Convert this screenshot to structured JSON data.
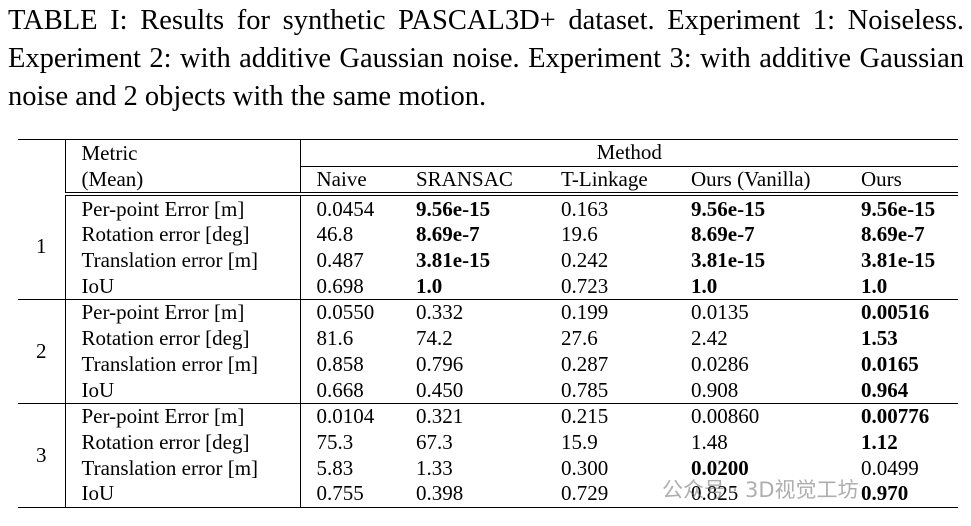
{
  "caption": "TABLE I: Results for synthetic PASCAL3D+ dataset. Experiment 1: Noiseless. Experiment 2: with additive Gaussian noise. Experiment 3: with additive Gaussian noise and 2 objects with the same motion.",
  "table": {
    "header": {
      "metric": [
        "Metric",
        "(Mean)"
      ],
      "method": "Method",
      "columns": [
        "Naive",
        "SRANSAC",
        "T-Linkage",
        "Ours (Vanilla)",
        "Ours"
      ]
    },
    "groups": [
      {
        "label": "1",
        "rows": [
          {
            "metric": "Per-point Error [m]",
            "values": [
              "0.0454",
              "9.56e-15",
              "0.163",
              "9.56e-15",
              "9.56e-15"
            ],
            "bold": [
              1,
              3,
              4
            ]
          },
          {
            "metric": "Rotation error [deg]",
            "values": [
              "46.8",
              "8.69e-7",
              "19.6",
              "8.69e-7",
              "8.69e-7"
            ],
            "bold": [
              1,
              3,
              4
            ]
          },
          {
            "metric": "Translation error [m]",
            "values": [
              "0.487",
              "3.81e-15",
              "0.242",
              "3.81e-15",
              "3.81e-15"
            ],
            "bold": [
              1,
              3,
              4
            ]
          },
          {
            "metric": "IoU",
            "values": [
              "0.698",
              "1.0",
              "0.723",
              "1.0",
              "1.0"
            ],
            "bold": [
              1,
              3,
              4
            ]
          }
        ]
      },
      {
        "label": "2",
        "rows": [
          {
            "metric": "Per-point Error [m]",
            "values": [
              "0.0550",
              "0.332",
              "0.199",
              "0.0135",
              "0.00516"
            ],
            "bold": [
              4
            ]
          },
          {
            "metric": "Rotation error [deg]",
            "values": [
              "81.6",
              "74.2",
              "27.6",
              "2.42",
              "1.53"
            ],
            "bold": [
              4
            ]
          },
          {
            "metric": "Translation error [m]",
            "values": [
              "0.858",
              "0.796",
              "0.287",
              "0.0286",
              "0.0165"
            ],
            "bold": [
              4
            ]
          },
          {
            "metric": "IoU",
            "values": [
              "0.668",
              "0.450",
              "0.785",
              "0.908",
              "0.964"
            ],
            "bold": [
              4
            ]
          }
        ]
      },
      {
        "label": "3",
        "rows": [
          {
            "metric": "Per-point Error [m]",
            "values": [
              "0.0104",
              "0.321",
              "0.215",
              "0.00860",
              "0.00776"
            ],
            "bold": [
              4
            ]
          },
          {
            "metric": "Rotation error [deg]",
            "values": [
              "75.3",
              "67.3",
              "15.9",
              "1.48",
              "1.12"
            ],
            "bold": [
              4
            ]
          },
          {
            "metric": "Translation error [m]",
            "values": [
              "5.83",
              "1.33",
              "0.300",
              "0.0200",
              "0.0499"
            ],
            "bold": [
              3
            ]
          },
          {
            "metric": "IoU",
            "values": [
              "0.755",
              "0.398",
              "0.729",
              "0.825",
              "0.970"
            ],
            "bold": [
              4
            ]
          }
        ]
      }
    ]
  },
  "watermark": "公众号 · 3D视觉工坊"
}
